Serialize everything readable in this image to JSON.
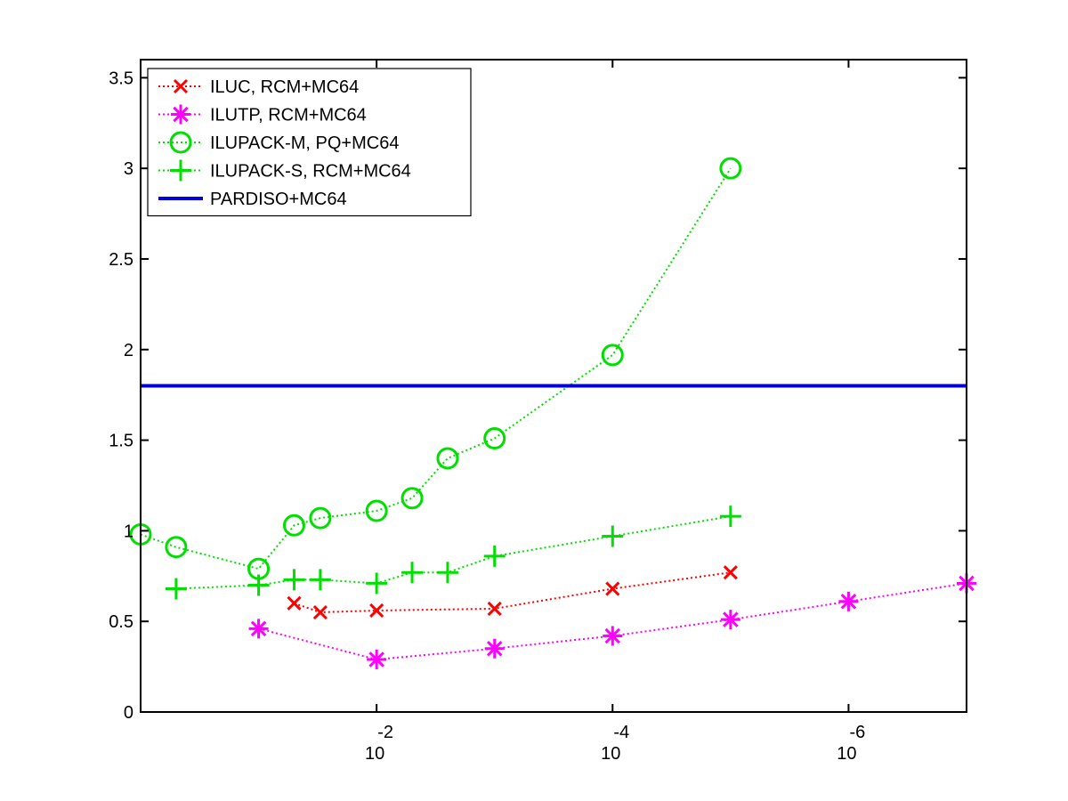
{
  "chart_data": {
    "type": "line",
    "title": "",
    "xlabel": "",
    "ylabel": "",
    "x_scale": "log",
    "x_reversed": true,
    "xlim": [
      1,
      1e-07
    ],
    "ylim": [
      0,
      3.6
    ],
    "grid": false,
    "legend_position": "top-left",
    "x_ticks": [
      {
        "value": 0.01,
        "base": "10",
        "exp": "-2"
      },
      {
        "value": 0.0001,
        "base": "10",
        "exp": "-4"
      },
      {
        "value": 1e-06,
        "base": "10",
        "exp": "-6"
      }
    ],
    "y_ticks": [
      {
        "value": 0,
        "label": "0"
      },
      {
        "value": 0.5,
        "label": "0.5"
      },
      {
        "value": 1,
        "label": "1"
      },
      {
        "value": 1.5,
        "label": "1.5"
      },
      {
        "value": 2,
        "label": "2"
      },
      {
        "value": 2.5,
        "label": "2.5"
      },
      {
        "value": 3,
        "label": "3"
      },
      {
        "value": 3.5,
        "label": "3.5"
      }
    ],
    "series": [
      {
        "name": "ILUC, RCM+MC64",
        "color": "#ff0000",
        "marker": "x",
        "line": "dotted",
        "x": [
          0.05,
          0.03,
          0.01,
          0.001,
          0.0001,
          1e-05
        ],
        "y": [
          0.6,
          0.55,
          0.56,
          0.57,
          0.68,
          0.77
        ]
      },
      {
        "name": "ILUTP, RCM+MC64",
        "color": "#ff00ff",
        "marker": "asterisk",
        "line": "dotted",
        "x": [
          0.1,
          0.01,
          0.001,
          0.0001,
          1e-05,
          1e-06,
          1e-07
        ],
        "y": [
          0.46,
          0.29,
          0.35,
          0.42,
          0.51,
          0.61,
          0.71
        ]
      },
      {
        "name": "ILUPACK-M, PQ+MC64",
        "color": "#00e000",
        "marker": "circle",
        "line": "dotted",
        "x": [
          1,
          0.5,
          0.1,
          0.05,
          0.03,
          0.01,
          0.005,
          0.0025,
          0.001,
          0.0001,
          1e-05
        ],
        "y": [
          0.98,
          0.91,
          0.79,
          1.03,
          1.07,
          1.11,
          1.18,
          1.4,
          1.51,
          1.97,
          3.0
        ]
      },
      {
        "name": "ILUPACK-S, RCM+MC64",
        "color": "#00e000",
        "marker": "plus",
        "line": "dotted",
        "x": [
          0.5,
          0.1,
          0.05,
          0.03,
          0.01,
          0.005,
          0.0025,
          0.001,
          0.0001,
          1e-05
        ],
        "y": [
          0.68,
          0.7,
          0.73,
          0.73,
          0.71,
          0.77,
          0.77,
          0.86,
          0.97,
          1.08
        ]
      },
      {
        "name": "PARDISO+MC64",
        "color": "#0000e0",
        "marker": "none",
        "line": "solid",
        "x": [
          1,
          1e-07
        ],
        "y": [
          1.8,
          1.8
        ]
      }
    ]
  }
}
